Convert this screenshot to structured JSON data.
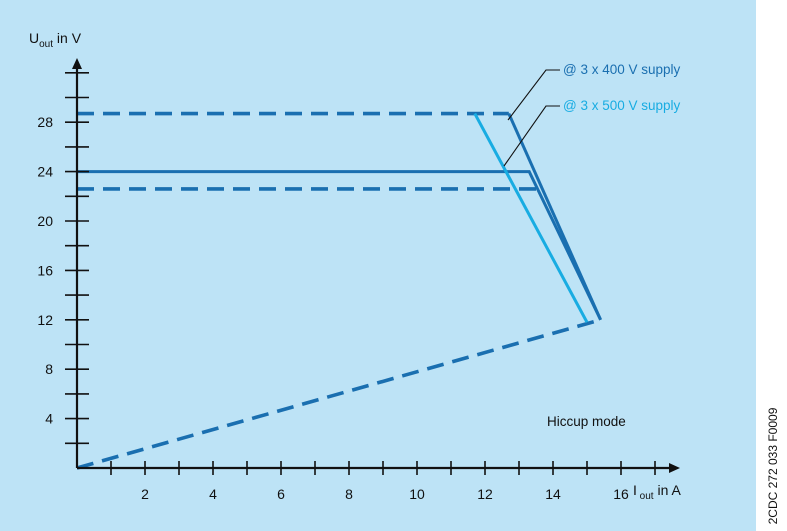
{
  "chart_data": {
    "type": "line",
    "xlabel": {
      "main": "I",
      "sub": "out",
      "unit": "in A"
    },
    "ylabel": {
      "main": "U",
      "sub": "out",
      "unit": "in V"
    },
    "x_ticks": [
      2,
      4,
      6,
      8,
      10,
      12,
      14,
      16
    ],
    "y_ticks": [
      4,
      8,
      12,
      16,
      20,
      24,
      28
    ],
    "xlim": [
      0,
      18
    ],
    "ylim": [
      0,
      33
    ],
    "series": [
      {
        "name": "@ 3 x 400 V supply",
        "color": "#1a6fb0",
        "style": "solid",
        "x": [
          0,
          13.3,
          15.4
        ],
        "y": [
          24,
          24,
          12
        ]
      },
      {
        "name": "@ 3 x 500 V supply",
        "color": "#18ace2",
        "style": "solid",
        "x": [
          11.7,
          15
        ],
        "y": [
          28.7,
          11.8
        ]
      },
      {
        "name": "",
        "color": "#1a6fb0",
        "style": "solid",
        "x": [
          12.7,
          15.4
        ],
        "y": [
          28.7,
          12
        ]
      }
    ],
    "reference_lines": [
      {
        "label": "",
        "style": "dashed",
        "color": "#1a6fb0",
        "x": [
          0,
          12.7
        ],
        "y": [
          28.7,
          28.7
        ]
      },
      {
        "label": "",
        "style": "dashed",
        "color": "#1a6fb0",
        "x": [
          0,
          13.6
        ],
        "y": [
          22.6,
          22.6
        ]
      },
      {
        "label": "Hiccup mode",
        "style": "dashed",
        "color": "#1a6fb0",
        "x": [
          0,
          15.4
        ],
        "y": [
          0,
          12
        ]
      }
    ],
    "annotations": [
      {
        "text": "@ 3 x 400 V supply",
        "color": "#1a6fb0"
      },
      {
        "text": "@ 3 x 500 V supply",
        "color": "#18ace2"
      },
      {
        "text": "Hiccup mode",
        "color": "#111111"
      }
    ],
    "grid": false,
    "background_color": "#bde3f6"
  },
  "figure_code": "2CDC 272 033 F0009"
}
